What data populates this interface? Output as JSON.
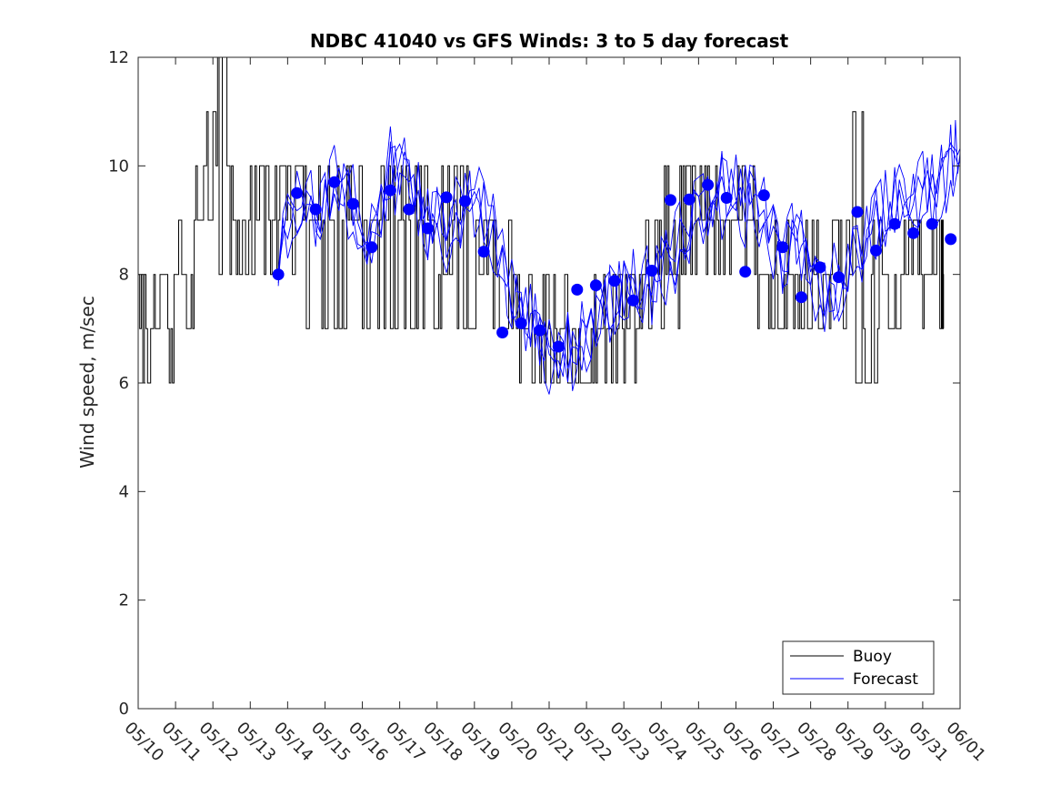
{
  "chart_data": {
    "type": "line",
    "title": "NDBC 41040 vs GFS Winds: 3 to 5 day forecast",
    "xlabel": "",
    "ylabel": "Wind speed, m/sec",
    "ylim": [
      0,
      12
    ],
    "yticks": [
      "0",
      "2",
      "4",
      "6",
      "8",
      "10",
      "12"
    ],
    "x_start": "05/10",
    "xticks": [
      "05/10",
      "05/11",
      "05/12",
      "05/13",
      "05/14",
      "05/15",
      "05/16",
      "05/17",
      "05/18",
      "05/19",
      "05/20",
      "05/21",
      "05/22",
      "05/23",
      "05/24",
      "05/25",
      "05/26",
      "05/27",
      "05/28",
      "05/29",
      "05/30",
      "05/31",
      "06/01"
    ],
    "grid": false,
    "legend": {
      "position": "bottom-right",
      "entries": [
        "Buoy",
        "Forecast"
      ]
    },
    "colors": {
      "buoy": "#000000",
      "forecast": "#0000ff",
      "forecast_mean": "#0000ff"
    },
    "series": [
      {
        "name": "Buoy",
        "style": "stairs",
        "x": [
          "05/10",
          "05/10 12:00",
          "05/11",
          "05/11 12:00",
          "05/12",
          "05/12 12:00",
          "05/13",
          "05/13 12:00",
          "05/14",
          "05/14 12:00",
          "05/15",
          "05/15 12:00",
          "05/16",
          "05/16 12:00",
          "05/17",
          "05/17 12:00",
          "05/18",
          "05/18 12:00",
          "05/19",
          "05/19 12:00",
          "05/20",
          "05/20 12:00",
          "05/21",
          "05/21 12:00",
          "05/22",
          "05/22 12:00",
          "05/23",
          "05/23 12:00",
          "05/24",
          "05/24 12:00",
          "05/25",
          "05/25 12:00",
          "05/26",
          "05/26 12:00",
          "05/27",
          "05/27 12:00",
          "05/28",
          "05/28 12:00",
          "05/29",
          "05/29 12:00",
          "05/30",
          "05/30 12:00",
          "05/31",
          "05/31 12:00"
        ],
        "values": [
          7,
          7,
          8,
          9,
          10,
          9,
          9,
          9,
          9,
          9,
          9,
          9,
          9,
          9,
          9,
          9,
          8,
          9,
          8,
          8,
          7,
          7,
          7,
          6,
          7,
          7,
          7,
          8,
          8,
          9,
          9,
          9,
          9,
          8,
          8,
          8,
          8,
          8,
          7,
          7,
          8,
          8,
          8,
          8
        ],
        "min_values": [
          6,
          6,
          7,
          8,
          8,
          8,
          8,
          8,
          8,
          7,
          7,
          7,
          7,
          7,
          7,
          7,
          7,
          7,
          7,
          7,
          6,
          6,
          6,
          6,
          6,
          6,
          6,
          7,
          7,
          8,
          8,
          8,
          8,
          7,
          7,
          7,
          7,
          7,
          6,
          6,
          7,
          7,
          7,
          7
        ],
        "max_values": [
          8,
          8,
          10,
          11,
          12,
          10,
          10,
          10,
          10,
          10,
          10,
          10,
          10,
          10,
          10,
          10,
          10,
          10,
          9,
          9,
          8,
          8,
          8,
          7,
          8,
          8,
          8,
          9,
          10,
          10,
          10,
          10,
          10,
          9,
          9,
          9,
          9,
          9,
          11,
          9,
          9,
          9,
          9,
          9
        ]
      },
      {
        "name": "Forecast",
        "style": "line",
        "x": [
          "05/13 18:00",
          "05/14 06:00",
          "05/14 18:00",
          "05/15 06:00",
          "05/15 18:00",
          "05/16 06:00",
          "05/16 18:00",
          "05/17 06:00",
          "05/17 18:00",
          "05/18 06:00",
          "05/18 18:00",
          "05/19 06:00",
          "05/19 18:00",
          "05/20 06:00",
          "05/20 18:00",
          "05/21 06:00",
          "05/21 18:00",
          "05/22 06:00",
          "05/22 18:00",
          "05/23 06:00",
          "05/23 18:00",
          "05/24 06:00",
          "05/24 18:00",
          "05/25 06:00",
          "05/25 18:00",
          "05/26 06:00",
          "05/26 18:00",
          "05/27 06:00",
          "05/27 18:00",
          "05/28 06:00",
          "05/28 18:00",
          "05/29 06:00",
          "05/29 18:00",
          "05/30 06:00",
          "05/30 18:00",
          "05/31 06:00",
          "05/31 18:00",
          "06/01"
        ],
        "values": [
          8.2,
          9.4,
          9.1,
          9.6,
          9.2,
          8.6,
          9.9,
          9.7,
          9.0,
          8.8,
          9.4,
          9.1,
          8.3,
          7.2,
          6.9,
          6.4,
          6.6,
          7.0,
          7.6,
          7.8,
          7.7,
          8.3,
          9.0,
          9.2,
          9.5,
          9.3,
          9.2,
          8.3,
          8.6,
          7.6,
          8.0,
          8.4,
          9.0,
          9.3,
          9.6,
          9.5,
          10.0,
          10.2
        ]
      },
      {
        "name": "",
        "style": "markers",
        "x": [
          "05/13 18:00",
          "05/14 06:00",
          "05/14 18:00",
          "05/15 06:00",
          "05/15 18:00",
          "05/16 06:00",
          "05/16 18:00",
          "05/17 06:00",
          "05/17 18:00",
          "05/18 06:00",
          "05/18 18:00",
          "05/19 06:00",
          "05/19 18:00",
          "05/20 06:00",
          "05/20 18:00",
          "05/21 06:00",
          "05/21 18:00",
          "05/22 06:00",
          "05/22 18:00",
          "05/23 06:00",
          "05/23 18:00",
          "05/24 06:00",
          "05/24 18:00",
          "05/25 06:00",
          "05/25 18:00",
          "05/26 06:00",
          "05/26 18:00",
          "05/27 06:00",
          "05/27 18:00",
          "05/28 06:00",
          "05/28 18:00",
          "05/29 06:00",
          "05/29 18:00",
          "05/30 06:00",
          "05/30 18:00",
          "05/31 06:00",
          "05/31 18:00"
        ],
        "values": [
          8.0,
          9.5,
          9.2,
          9.7,
          9.3,
          8.5,
          9.55,
          9.2,
          8.85,
          9.42,
          9.35,
          8.42,
          6.93,
          7.1,
          6.97,
          6.67,
          7.72,
          7.8,
          7.88,
          7.52,
          8.07,
          9.37,
          9.38,
          9.65,
          9.41,
          8.05,
          9.46,
          8.5,
          7.58,
          8.13,
          7.95,
          9.15,
          8.44,
          8.93,
          8.76,
          8.93,
          8.65
        ]
      }
    ]
  }
}
